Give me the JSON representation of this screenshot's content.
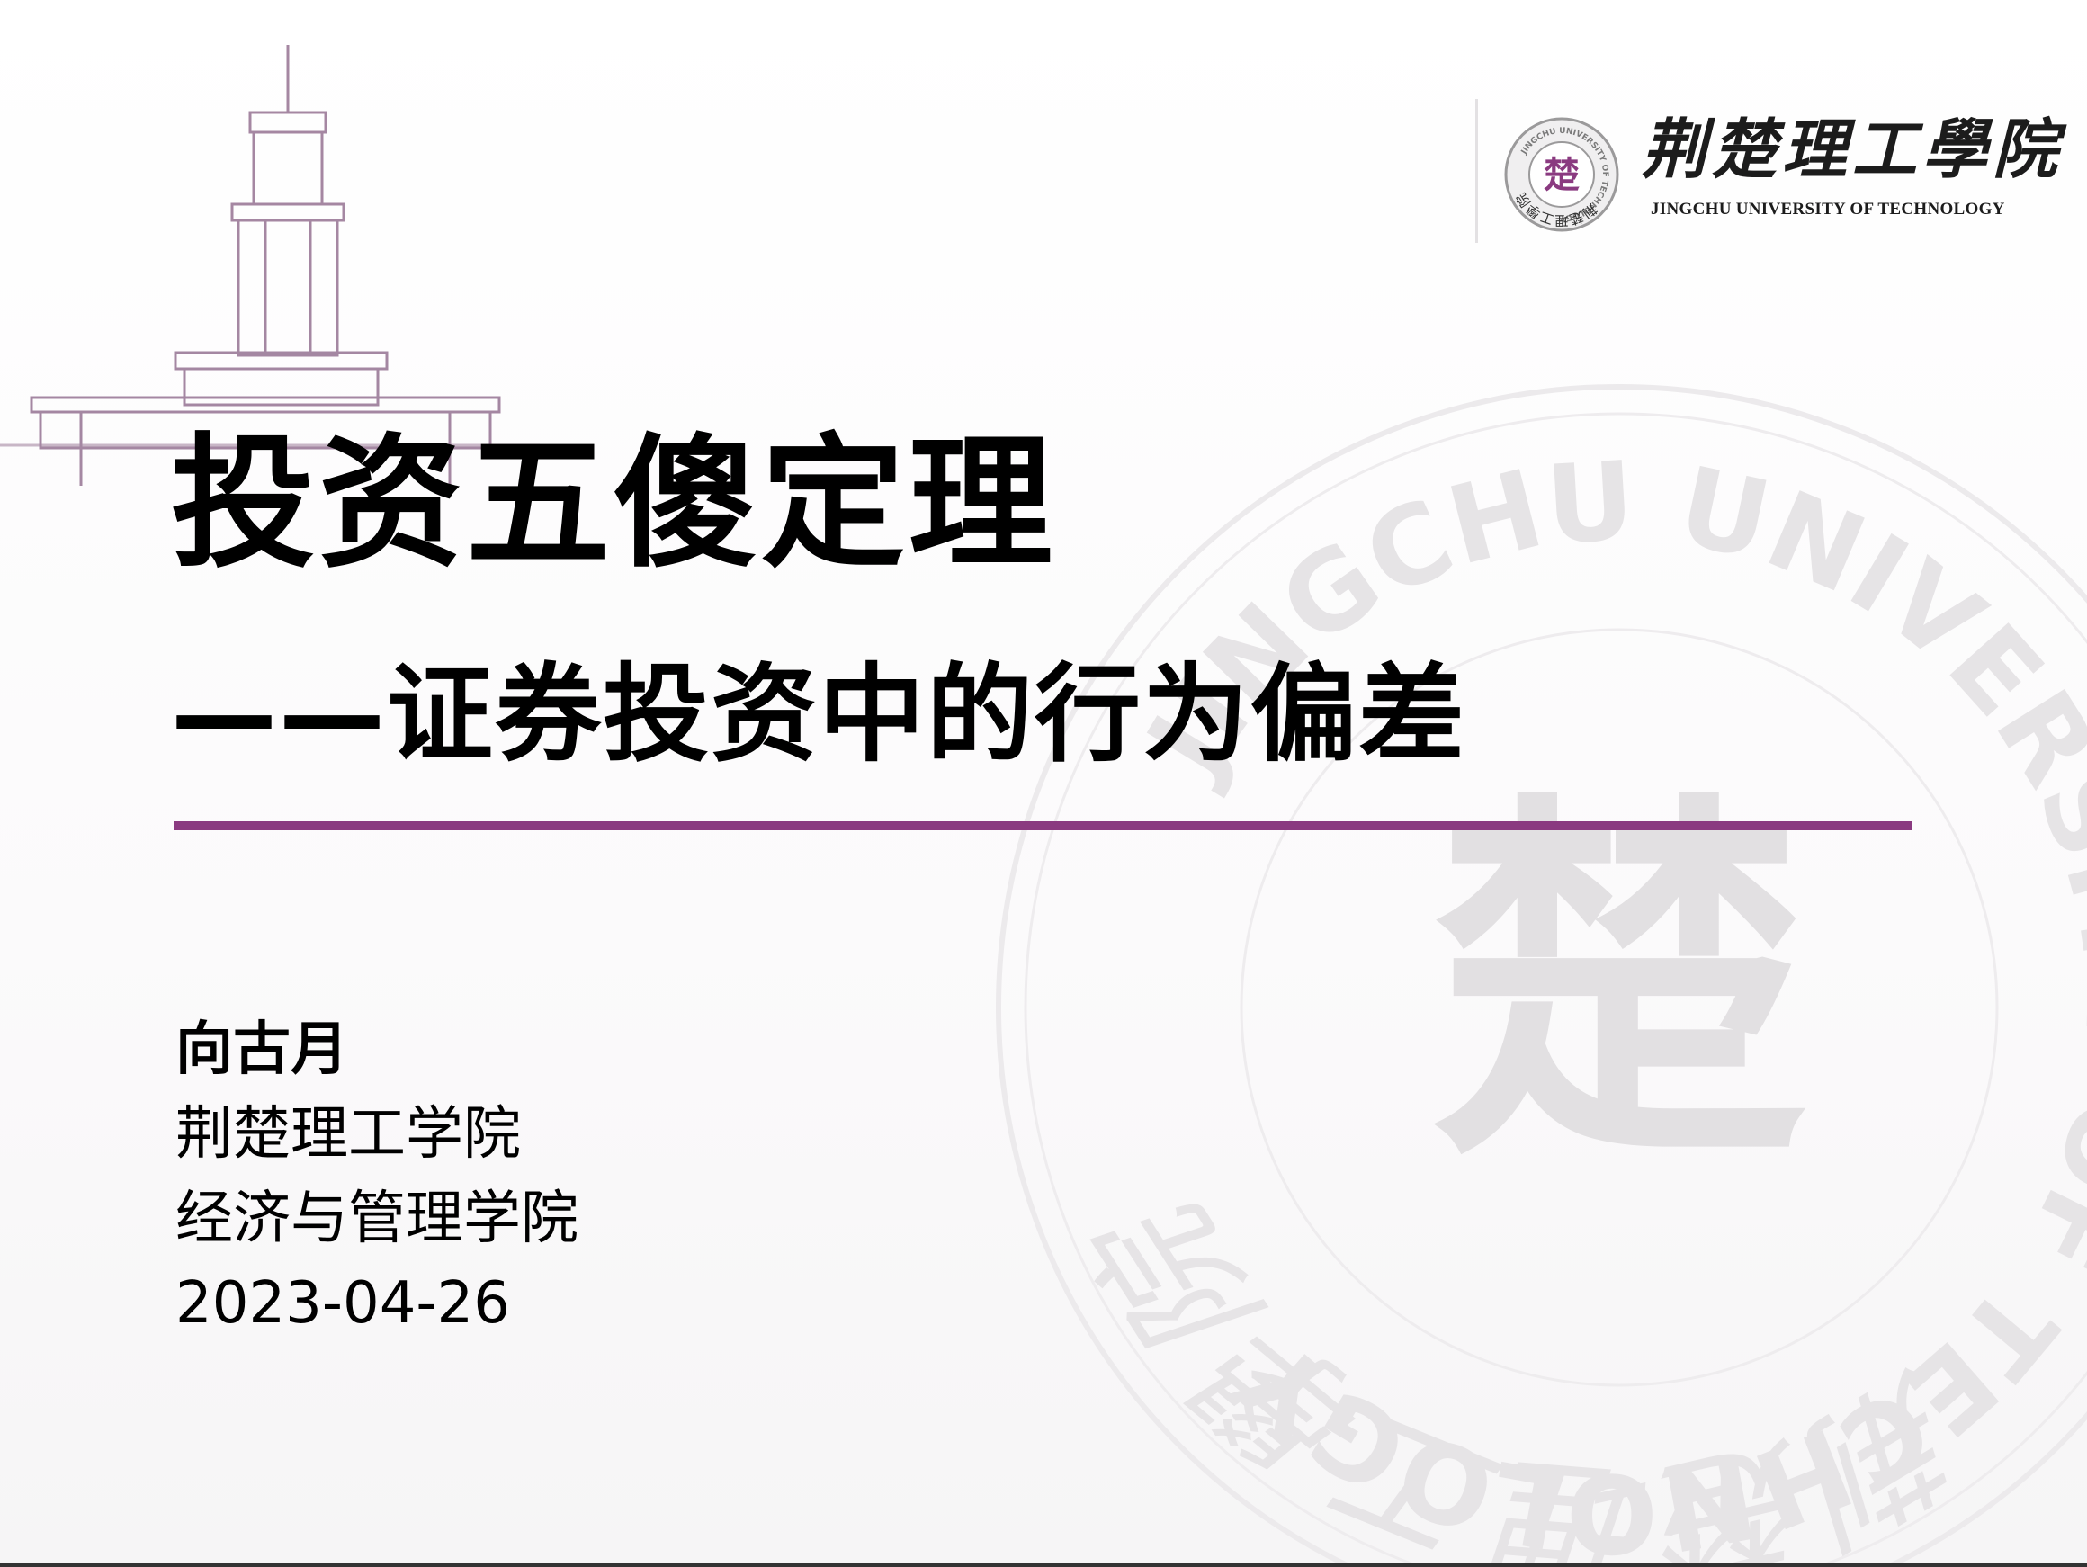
{
  "header": {
    "logo_name_cn": "荆楚理工學院",
    "logo_name_en": "JINGCHU UNIVERSITY OF TECHNOLOGY",
    "seal_char": "楚",
    "seal_ring_text_cn": "荆楚理工學院",
    "seal_ring_text_en": "JINGCHU UNIVERSITY OF TECHNOLOGY"
  },
  "watermark": {
    "ring_text_cn": "荆楚理工學院",
    "ring_text_en": "JINGCHU UNIVERSITY OF TECHNOLOGY",
    "center_char": "楚"
  },
  "title": {
    "main": "投资五傻定理",
    "sub": "——证券投资中的行为偏差"
  },
  "info": {
    "author": "向古月",
    "university": "荆楚理工学院",
    "school": "经济与管理学院",
    "date": "2023-04-26"
  },
  "colors": {
    "accent": "#8a3a80",
    "building_line": "#8f6a8c",
    "watermark": "#e8e6e8",
    "text": "#000000"
  }
}
